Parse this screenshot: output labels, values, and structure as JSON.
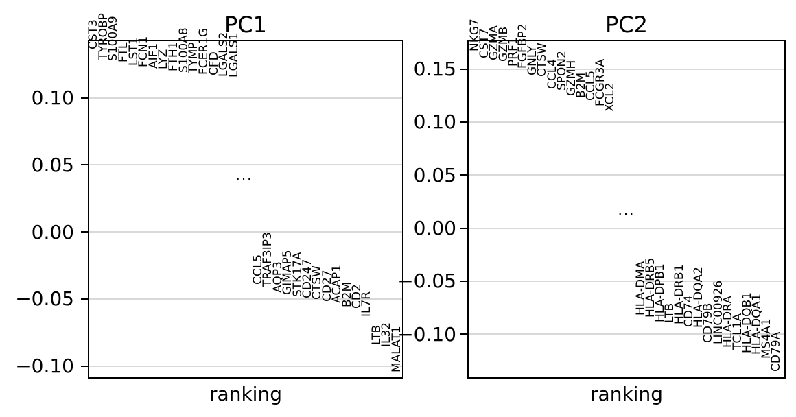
{
  "figure": {
    "background_color": "#ffffff",
    "grid_color": "#d9d9d9",
    "spine_color": "#000000",
    "text_color": "#000000"
  },
  "ellipsis": "...",
  "chart_data": [
    {
      "type": "scatter",
      "marker": "gene-name-text",
      "title": "PC1",
      "xlabel": "ranking",
      "grid": true,
      "ylim": [
        -0.11,
        0.143
      ],
      "yticks": [
        0.1,
        0.05,
        0.0,
        -0.05,
        -0.1
      ],
      "top_genes": [
        {
          "name": "CST3",
          "value": 0.1361
        },
        {
          "name": "TYROBP",
          "value": 0.1284
        },
        {
          "name": "S100A9",
          "value": 0.1274
        },
        {
          "name": "FTL",
          "value": 0.1263
        },
        {
          "name": "LST1",
          "value": 0.1238
        },
        {
          "name": "FCN1",
          "value": 0.1228
        },
        {
          "name": "AIF1",
          "value": 0.1217
        },
        {
          "name": "LYZ",
          "value": 0.1212
        },
        {
          "name": "FTH1",
          "value": 0.1197
        },
        {
          "name": "S100A8",
          "value": 0.1187
        },
        {
          "name": "TYMP",
          "value": 0.1182
        },
        {
          "name": "FCER1G",
          "value": 0.1171
        },
        {
          "name": "CFD",
          "value": 0.1166
        },
        {
          "name": "LGALS2",
          "value": 0.1156
        },
        {
          "name": "LGALS1",
          "value": 0.1151
        }
      ],
      "bottom_genes": [
        {
          "name": "CCL5",
          "value": -0.0394
        },
        {
          "name": "TRAF3IP3",
          "value": -0.0409
        },
        {
          "name": "AQP3",
          "value": -0.0455
        },
        {
          "name": "GIMAP5",
          "value": -0.0471
        },
        {
          "name": "STK17A",
          "value": -0.0486
        },
        {
          "name": "CD247",
          "value": -0.0496
        },
        {
          "name": "CTSW",
          "value": -0.0506
        },
        {
          "name": "CD27",
          "value": -0.0522
        },
        {
          "name": "ACAP1",
          "value": -0.0532
        },
        {
          "name": "B2M",
          "value": -0.0563
        },
        {
          "name": "CD2",
          "value": -0.0573
        },
        {
          "name": "IL7R",
          "value": -0.0634
        },
        {
          "name": "LTB",
          "value": -0.0844
        },
        {
          "name": "IL32",
          "value": -0.0859
        },
        {
          "name": "MALAT1",
          "value": -0.1049
        }
      ]
    },
    {
      "type": "scatter",
      "marker": "gene-name-text",
      "title": "PC2",
      "xlabel": "ranking",
      "grid": true,
      "ylim": [
        -0.142,
        0.178
      ],
      "yticks": [
        0.15,
        0.1,
        0.05,
        0.0,
        -0.05,
        -0.1
      ],
      "top_genes": [
        {
          "name": "NKG7",
          "value": 0.1666
        },
        {
          "name": "CST7",
          "value": 0.1601
        },
        {
          "name": "GZMA",
          "value": 0.1582
        },
        {
          "name": "GZMB",
          "value": 0.1569
        },
        {
          "name": "PRF1",
          "value": 0.1523
        },
        {
          "name": "FGFBP2",
          "value": 0.1504
        },
        {
          "name": "GNLY",
          "value": 0.1439
        },
        {
          "name": "CTSW",
          "value": 0.1426
        },
        {
          "name": "CCL4",
          "value": 0.131
        },
        {
          "name": "SPON2",
          "value": 0.1297
        },
        {
          "name": "GZMH",
          "value": 0.1245
        },
        {
          "name": "B2M",
          "value": 0.1226
        },
        {
          "name": "CCL5",
          "value": 0.12
        },
        {
          "name": "FCGR3A",
          "value": 0.1148
        },
        {
          "name": "XCL2",
          "value": 0.1096
        }
      ],
      "bottom_genes": [
        {
          "name": "HLA-DMA",
          "value": -0.0825
        },
        {
          "name": "HLA-DRB5",
          "value": -0.0844
        },
        {
          "name": "HLA-DPB1",
          "value": -0.0889
        },
        {
          "name": "LTB",
          "value": -0.0896
        },
        {
          "name": "HLA-DRB1",
          "value": -0.0909
        },
        {
          "name": "CD74",
          "value": -0.0935
        },
        {
          "name": "HLA-DQA2",
          "value": -0.0941
        },
        {
          "name": "CD79B",
          "value": -0.1083
        },
        {
          "name": "LINC00926",
          "value": -0.1096
        },
        {
          "name": "HLA-DRA",
          "value": -0.1129
        },
        {
          "name": "TCL1A",
          "value": -0.1148
        },
        {
          "name": "HLA-DQB1",
          "value": -0.1181
        },
        {
          "name": "HLA-DQA1",
          "value": -0.1193
        },
        {
          "name": "MS4A1",
          "value": -0.1232
        },
        {
          "name": "CD79A",
          "value": -0.1355
        }
      ]
    }
  ]
}
